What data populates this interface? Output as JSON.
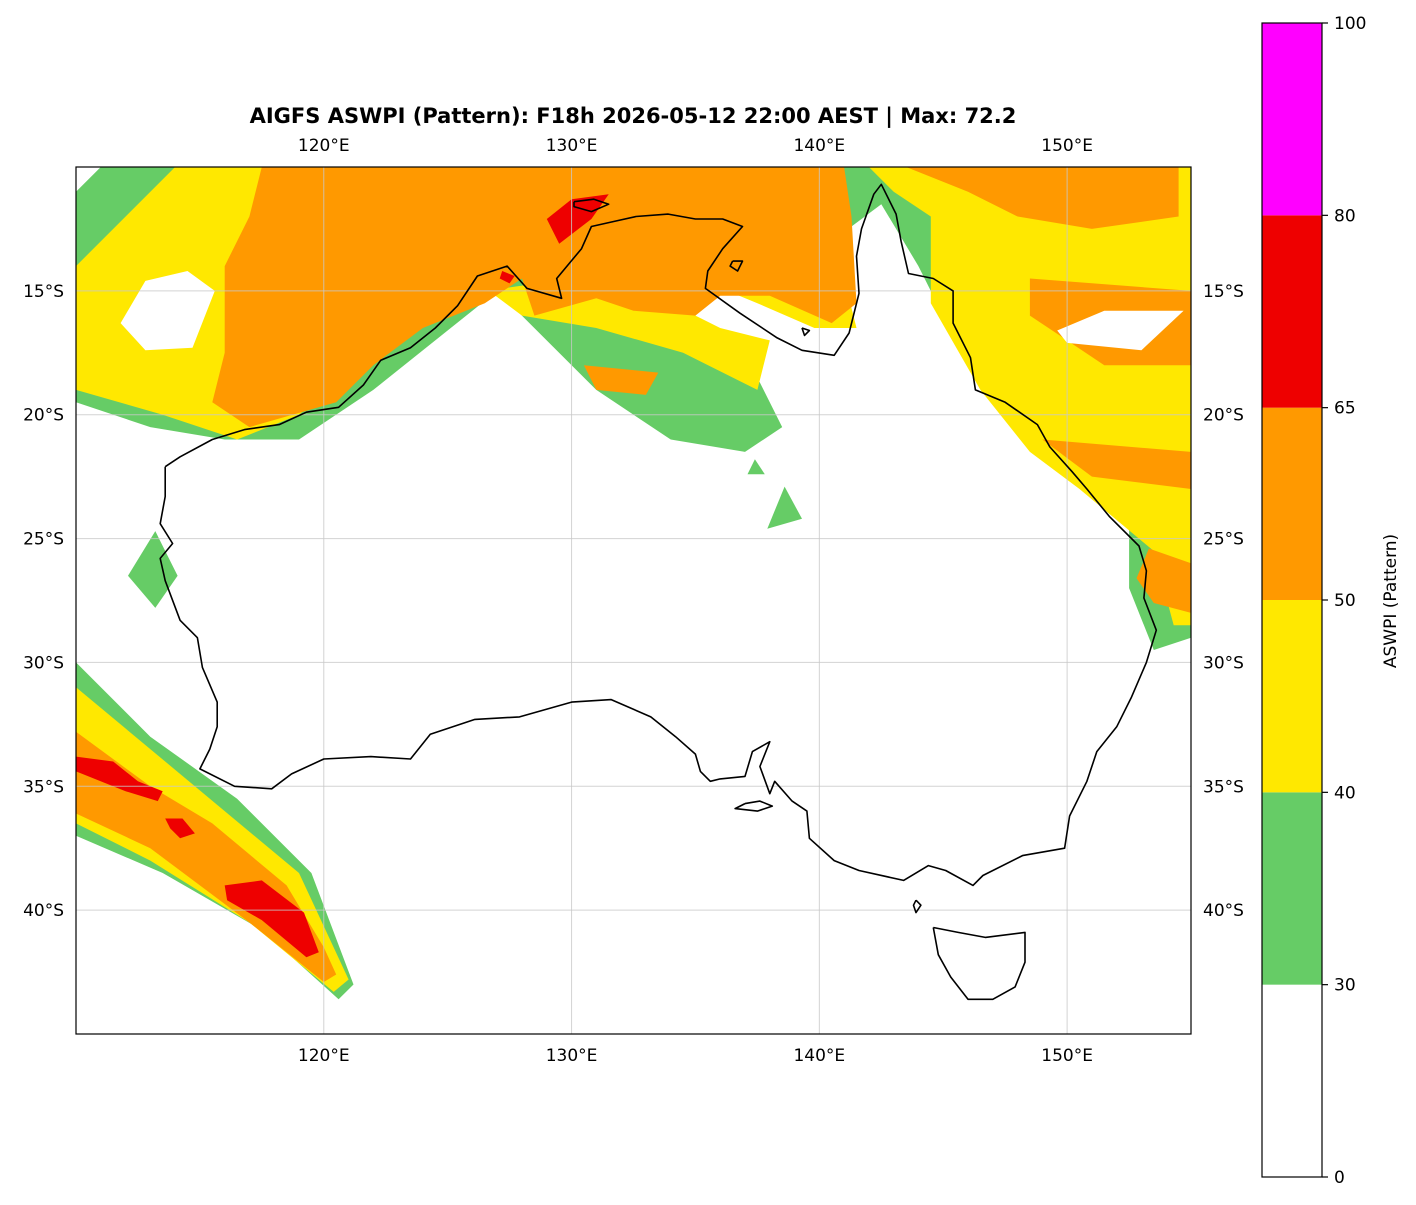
{
  "map": {
    "title": "AIGFS ASWPI (Pattern): F18h 2026-05-12 22:00 AEST | Max: 72.2",
    "extent": {
      "lon": [
        110,
        155
      ],
      "lat": [
        -45,
        -10
      ]
    },
    "lon_ticks": [
      {
        "value": 120,
        "label": "120°E"
      },
      {
        "value": 130,
        "label": "130°E"
      },
      {
        "value": 140,
        "label": "140°E"
      },
      {
        "value": 150,
        "label": "150°E"
      }
    ],
    "lat_ticks": [
      {
        "value": -15,
        "label": "15°S"
      },
      {
        "value": -20,
        "label": "20°S"
      },
      {
        "value": -25,
        "label": "25°S"
      },
      {
        "value": -30,
        "label": "30°S"
      },
      {
        "value": -35,
        "label": "35°S"
      },
      {
        "value": -40,
        "label": "40°S"
      }
    ],
    "gridlines": true
  },
  "colorbar": {
    "label": "ASWPI (Pattern)",
    "bins": [
      {
        "from": 0,
        "to": 30,
        "color": "#ffffff"
      },
      {
        "from": 30,
        "to": 40,
        "color": "#66cc66"
      },
      {
        "from": 40,
        "to": 50,
        "color": "#ffe800"
      },
      {
        "from": 50,
        "to": 65,
        "color": "#ff9900"
      },
      {
        "from": 65,
        "to": 80,
        "color": "#ee0000"
      },
      {
        "from": 80,
        "to": 100,
        "color": "#ff00ff"
      }
    ],
    "ticks": [
      "0",
      "30",
      "40",
      "50",
      "65",
      "80",
      "100"
    ]
  },
  "colors": {
    "green": "#66cc66",
    "yellow": "#ffe800",
    "orange": "#ff9900",
    "red": "#ee0000",
    "magenta": "#ff00ff",
    "coast": "#000000"
  },
  "regions": {
    "green": [
      [
        [
          111,
          -10
        ],
        [
          129,
          -10
        ],
        [
          130,
          -12
        ],
        [
          128,
          -15
        ],
        [
          133,
          -16
        ],
        [
          137.5,
          -18.5
        ],
        [
          138.5,
          -20.5
        ],
        [
          137,
          -21.5
        ],
        [
          134,
          -21
        ],
        [
          131,
          -19
        ],
        [
          127,
          -15
        ],
        [
          122,
          -19
        ],
        [
          119,
          -21
        ],
        [
          116,
          -21
        ],
        [
          113,
          -20.5
        ],
        [
          110,
          -19.5
        ],
        [
          110,
          -11
        ]
      ],
      [
        [
          110,
          -30
        ],
        [
          113,
          -33
        ],
        [
          116.5,
          -35.5
        ],
        [
          119.5,
          -38.5
        ],
        [
          121.2,
          -43
        ],
        [
          120.6,
          -43.6
        ],
        [
          117.5,
          -40.8
        ],
        [
          113.5,
          -38.5
        ],
        [
          110,
          -37
        ]
      ],
      [
        [
          139.2,
          -10
        ],
        [
          155,
          -10
        ],
        [
          155,
          -29
        ],
        [
          153.5,
          -29.5
        ],
        [
          152.5,
          -27
        ],
        [
          152.5,
          -24
        ],
        [
          151,
          -22.5
        ],
        [
          149,
          -21
        ],
        [
          146,
          -18
        ],
        [
          144,
          -14
        ],
        [
          142.5,
          -11.5
        ],
        [
          140.5,
          -13
        ],
        [
          139.5,
          -15
        ],
        [
          138.5,
          -13
        ],
        [
          138.5,
          -11
        ]
      ],
      [
        [
          114.1,
          -26.5
        ],
        [
          113.2,
          -27.8
        ],
        [
          112.1,
          -26.5
        ],
        [
          113.2,
          -24.7
        ]
      ],
      [
        [
          139.3,
          -24.2
        ],
        [
          137.9,
          -24.6
        ],
        [
          138.6,
          -22.9
        ]
      ],
      [
        [
          137.8,
          -22.4
        ],
        [
          137.1,
          -22.4
        ],
        [
          137.4,
          -21.8
        ]
      ]
    ],
    "yellow": [
      [
        [
          114,
          -10
        ],
        [
          128,
          -10
        ],
        [
          128.5,
          -12
        ],
        [
          127,
          -13
        ],
        [
          126.5,
          -15
        ],
        [
          130,
          -14.5
        ],
        [
          134,
          -15.5
        ],
        [
          136,
          -16.5
        ],
        [
          138,
          -17
        ],
        [
          137.5,
          -19
        ],
        [
          134.5,
          -17.5
        ],
        [
          131,
          -16.5
        ],
        [
          128,
          -16
        ],
        [
          126,
          -14.5
        ],
        [
          122,
          -17.5
        ],
        [
          119,
          -20
        ],
        [
          116.5,
          -21
        ],
        [
          113.5,
          -20
        ],
        [
          110,
          -19
        ],
        [
          110,
          -14
        ]
      ],
      [
        [
          110,
          -31
        ],
        [
          113,
          -33.5
        ],
        [
          116,
          -36
        ],
        [
          119,
          -38.5
        ],
        [
          121,
          -42.8
        ],
        [
          120.4,
          -43.3
        ],
        [
          117,
          -40.5
        ],
        [
          113,
          -38
        ],
        [
          110,
          -36.5
        ]
      ],
      [
        [
          142,
          -10
        ],
        [
          155,
          -10
        ],
        [
          155,
          -28.5
        ],
        [
          154.3,
          -28.5
        ],
        [
          153.5,
          -25.5
        ],
        [
          150.5,
          -23
        ],
        [
          148.5,
          -21.5
        ],
        [
          146.5,
          -19
        ],
        [
          144.5,
          -15.5
        ],
        [
          144.5,
          -12
        ],
        [
          143,
          -11
        ]
      ],
      [
        [
          135.5,
          -13
        ],
        [
          139,
          -13.5
        ],
        [
          141,
          -14.5
        ],
        [
          141.5,
          -16.5
        ],
        [
          139.8,
          -16.5
        ],
        [
          137.5,
          -15.5
        ],
        [
          135.8,
          -14.8
        ]
      ]
    ],
    "orange": [
      [
        [
          117.5,
          -10
        ],
        [
          141,
          -10
        ],
        [
          141.3,
          -12
        ],
        [
          141.5,
          -15.5
        ],
        [
          140.5,
          -16.3
        ],
        [
          138,
          -15.2
        ],
        [
          136,
          -15.2
        ],
        [
          135,
          -16
        ],
        [
          132.5,
          -15.8
        ],
        [
          131,
          -15.3
        ],
        [
          128.5,
          -16
        ],
        [
          128,
          -14.5
        ],
        [
          126.5,
          -15.5
        ],
        [
          124,
          -16.5
        ],
        [
          122,
          -18
        ],
        [
          120.5,
          -19.5
        ],
        [
          117,
          -20.5
        ],
        [
          115.5,
          -19.5
        ],
        [
          116,
          -17.5
        ],
        [
          116,
          -14
        ],
        [
          117,
          -12
        ]
      ],
      [
        [
          110,
          -32.8
        ],
        [
          113,
          -35
        ],
        [
          115.5,
          -36.5
        ],
        [
          118.5,
          -39
        ],
        [
          120,
          -41.5
        ],
        [
          120.5,
          -42.6
        ],
        [
          120,
          -42.9
        ],
        [
          117,
          -40.5
        ],
        [
          113,
          -37.5
        ],
        [
          110,
          -36.1
        ]
      ],
      [
        [
          143.5,
          -10
        ],
        [
          154.5,
          -10
        ],
        [
          154.5,
          -12
        ],
        [
          151,
          -12.5
        ],
        [
          148,
          -12
        ],
        [
          146,
          -11
        ]
      ],
      [
        [
          148.5,
          -14.5
        ],
        [
          155,
          -15
        ],
        [
          155,
          -18
        ],
        [
          151.5,
          -18
        ],
        [
          150,
          -17
        ],
        [
          148.5,
          -16
        ]
      ],
      [
        [
          149,
          -21
        ],
        [
          155,
          -21.5
        ],
        [
          155,
          -23
        ],
        [
          151,
          -22.5
        ]
      ],
      [
        [
          153.3,
          -25.4
        ],
        [
          155,
          -26
        ],
        [
          155,
          -28
        ],
        [
          153.5,
          -27.6
        ],
        [
          152.8,
          -26.6
        ]
      ],
      [
        [
          130.5,
          -18
        ],
        [
          133.5,
          -18.3
        ],
        [
          133,
          -19.2
        ],
        [
          131,
          -19
        ]
      ]
    ],
    "red": [
      [
        [
          130,
          -11.3
        ],
        [
          131.5,
          -11.1
        ],
        [
          130.8,
          -12.1
        ],
        [
          129.5,
          -13.1
        ],
        [
          129,
          -12.1
        ]
      ],
      [
        [
          110,
          -33.8
        ],
        [
          111.5,
          -34
        ],
        [
          112.5,
          -34.8
        ],
        [
          113.5,
          -35.2
        ],
        [
          113.3,
          -35.6
        ],
        [
          112,
          -35.2
        ],
        [
          110,
          -34.4
        ]
      ],
      [
        [
          113.6,
          -36.3
        ],
        [
          114.3,
          -36.3
        ],
        [
          114.8,
          -36.9
        ],
        [
          114.2,
          -37.1
        ],
        [
          113.8,
          -36.7
        ]
      ],
      [
        [
          116,
          -39
        ],
        [
          117.5,
          -38.8
        ],
        [
          119.2,
          -40.1
        ],
        [
          119.8,
          -41.7
        ],
        [
          119.3,
          -41.9
        ],
        [
          117.5,
          -40.4
        ],
        [
          116.1,
          -39.6
        ]
      ],
      [
        [
          127.2,
          -14.2
        ],
        [
          127.7,
          -14.4
        ],
        [
          127.5,
          -14.7
        ],
        [
          127.1,
          -14.5
        ]
      ]
    ],
    "white_holes": [
      [
        [
          115.6,
          -15
        ],
        [
          114.7,
          -17.3
        ],
        [
          112.8,
          -17.4
        ],
        [
          111.8,
          -16.3
        ],
        [
          112.8,
          -14.6
        ],
        [
          114.5,
          -14.2
        ]
      ],
      [
        [
          154.7,
          -15.8
        ],
        [
          153,
          -17.4
        ],
        [
          150,
          -17.1
        ],
        [
          149.6,
          -16.6
        ],
        [
          151.5,
          -15.8
        ]
      ],
      [
        [
          142.5,
          -12
        ],
        [
          143.5,
          -14
        ],
        [
          142.5,
          -16.2
        ],
        [
          141.6,
          -15
        ],
        [
          141.8,
          -13
        ]
      ]
    ]
  },
  "coastline": {
    "mainland": [
      [
        113.6,
        -22.1
      ],
      [
        114.2,
        -21.7
      ],
      [
        115.5,
        -21.0
      ],
      [
        116.8,
        -20.6
      ],
      [
        118.2,
        -20.4
      ],
      [
        119.3,
        -19.9
      ],
      [
        120.6,
        -19.7
      ],
      [
        121.6,
        -18.8
      ],
      [
        122.3,
        -17.8
      ],
      [
        123.5,
        -17.3
      ],
      [
        124.5,
        -16.5
      ],
      [
        125.4,
        -15.6
      ],
      [
        126.2,
        -14.4
      ],
      [
        127.4,
        -14.0
      ],
      [
        128.2,
        -14.9
      ],
      [
        129.6,
        -15.3
      ],
      [
        129.4,
        -14.5
      ],
      [
        130.4,
        -13.3
      ],
      [
        130.8,
        -12.4
      ],
      [
        131.7,
        -12.2
      ],
      [
        132.6,
        -12.0
      ],
      [
        133.9,
        -11.9
      ],
      [
        135.0,
        -12.1
      ],
      [
        136.1,
        -12.1
      ],
      [
        136.9,
        -12.4
      ],
      [
        136.1,
        -13.3
      ],
      [
        135.5,
        -14.2
      ],
      [
        135.4,
        -14.9
      ],
      [
        136.8,
        -15.9
      ],
      [
        138.3,
        -16.9
      ],
      [
        139.3,
        -17.4
      ],
      [
        140.6,
        -17.6
      ],
      [
        141.2,
        -16.7
      ],
      [
        141.6,
        -15.1
      ],
      [
        141.5,
        -13.6
      ],
      [
        141.7,
        -12.5
      ],
      [
        142.2,
        -11.1
      ],
      [
        142.5,
        -10.7
      ],
      [
        143.1,
        -11.9
      ],
      [
        143.3,
        -13.0
      ],
      [
        143.6,
        -14.3
      ],
      [
        144.6,
        -14.5
      ],
      [
        145.4,
        -15.0
      ],
      [
        145.4,
        -16.3
      ],
      [
        146.1,
        -17.7
      ],
      [
        146.3,
        -19.0
      ],
      [
        147.5,
        -19.5
      ],
      [
        148.8,
        -20.4
      ],
      [
        149.3,
        -21.3
      ],
      [
        150.2,
        -22.3
      ],
      [
        150.8,
        -23.0
      ],
      [
        151.7,
        -24.1
      ],
      [
        152.9,
        -25.3
      ],
      [
        153.2,
        -26.3
      ],
      [
        153.1,
        -27.4
      ],
      [
        153.6,
        -28.7
      ],
      [
        153.2,
        -30.0
      ],
      [
        152.6,
        -31.4
      ],
      [
        152.0,
        -32.6
      ],
      [
        151.2,
        -33.6
      ],
      [
        150.8,
        -34.8
      ],
      [
        150.1,
        -36.2
      ],
      [
        149.9,
        -37.5
      ],
      [
        148.2,
        -37.8
      ],
      [
        146.6,
        -38.6
      ],
      [
        146.2,
        -39.0
      ],
      [
        145.1,
        -38.4
      ],
      [
        144.4,
        -38.2
      ],
      [
        143.4,
        -38.8
      ],
      [
        141.6,
        -38.4
      ],
      [
        140.6,
        -38.0
      ],
      [
        139.6,
        -37.1
      ],
      [
        139.5,
        -36.0
      ],
      [
        138.9,
        -35.6
      ],
      [
        138.2,
        -34.8
      ],
      [
        138.0,
        -35.3
      ],
      [
        137.6,
        -34.2
      ],
      [
        138.0,
        -33.2
      ],
      [
        137.3,
        -33.6
      ],
      [
        137.0,
        -34.6
      ],
      [
        136.0,
        -34.7
      ],
      [
        135.6,
        -34.8
      ],
      [
        135.2,
        -34.4
      ],
      [
        135.0,
        -33.7
      ],
      [
        134.2,
        -33.0
      ],
      [
        133.2,
        -32.2
      ],
      [
        131.6,
        -31.5
      ],
      [
        130.0,
        -31.6
      ],
      [
        127.9,
        -32.2
      ],
      [
        126.1,
        -32.3
      ],
      [
        124.3,
        -32.9
      ],
      [
        123.5,
        -33.9
      ],
      [
        121.9,
        -33.8
      ],
      [
        120.0,
        -33.9
      ],
      [
        118.7,
        -34.5
      ],
      [
        117.9,
        -35.1
      ],
      [
        116.4,
        -35.0
      ],
      [
        115.0,
        -34.3
      ],
      [
        115.4,
        -33.5
      ],
      [
        115.7,
        -32.6
      ],
      [
        115.7,
        -31.6
      ],
      [
        115.1,
        -30.2
      ],
      [
        114.9,
        -29.0
      ],
      [
        114.2,
        -28.3
      ],
      [
        113.6,
        -26.7
      ],
      [
        113.4,
        -25.8
      ],
      [
        113.9,
        -25.2
      ],
      [
        113.4,
        -24.4
      ],
      [
        113.6,
        -23.3
      ],
      [
        113.6,
        -22.1
      ]
    ],
    "tasmania": [
      [
        144.6,
        -40.7
      ],
      [
        145.6,
        -40.9
      ],
      [
        146.7,
        -41.1
      ],
      [
        148.3,
        -40.9
      ],
      [
        148.3,
        -42.1
      ],
      [
        147.9,
        -43.1
      ],
      [
        147.0,
        -43.6
      ],
      [
        146.0,
        -43.6
      ],
      [
        145.3,
        -42.7
      ],
      [
        144.8,
        -41.8
      ],
      [
        144.6,
        -40.7
      ]
    ],
    "islands": [
      [
        [
          137.0,
          -35.7
        ],
        [
          137.6,
          -35.6
        ],
        [
          138.1,
          -35.8
        ],
        [
          137.5,
          -36.0
        ],
        [
          136.6,
          -35.9
        ],
        [
          137.0,
          -35.7
        ]
      ],
      [
        [
          143.9,
          -39.6
        ],
        [
          144.1,
          -39.8
        ],
        [
          143.9,
          -40.1
        ],
        [
          143.8,
          -39.8
        ],
        [
          143.9,
          -39.6
        ]
      ],
      [
        [
          130.1,
          -11.4
        ],
        [
          130.9,
          -11.3
        ],
        [
          131.5,
          -11.5
        ],
        [
          130.8,
          -11.8
        ],
        [
          130.1,
          -11.6
        ],
        [
          130.1,
          -11.4
        ]
      ],
      [
        [
          136.5,
          -13.8
        ],
        [
          136.9,
          -13.8
        ],
        [
          136.7,
          -14.2
        ],
        [
          136.4,
          -14.0
        ],
        [
          136.5,
          -13.8
        ]
      ],
      [
        [
          139.3,
          -16.5
        ],
        [
          139.6,
          -16.6
        ],
        [
          139.4,
          -16.8
        ],
        [
          139.3,
          -16.5
        ]
      ]
    ]
  }
}
